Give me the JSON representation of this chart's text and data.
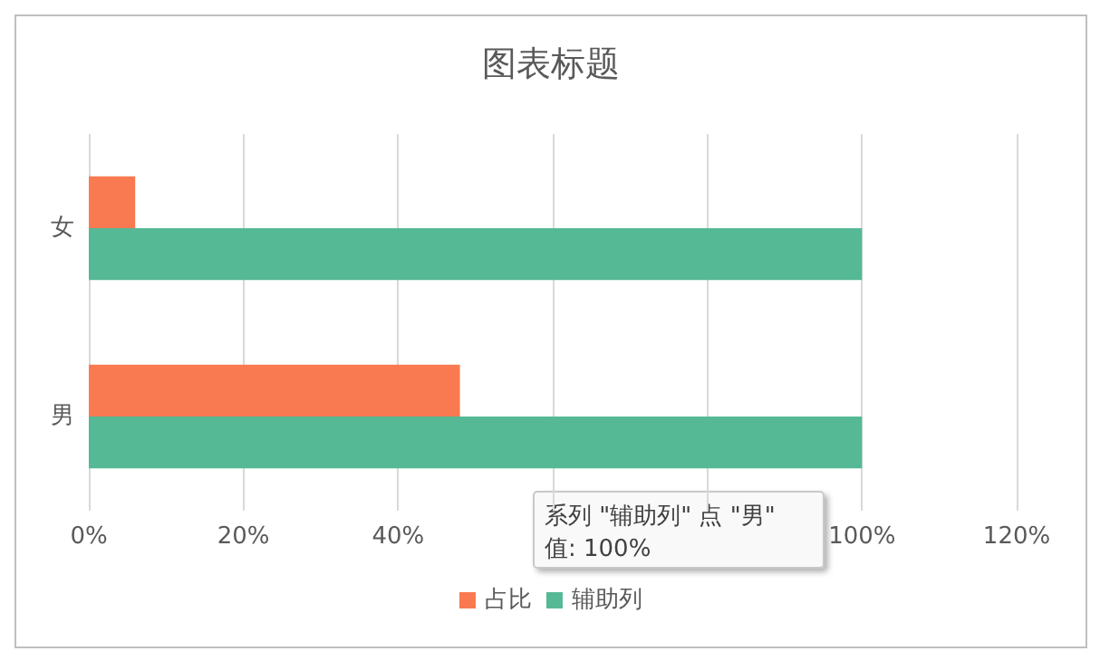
{
  "chart_data": {
    "type": "bar",
    "orientation": "horizontal",
    "title": "图表标题",
    "categories": [
      "女",
      "男"
    ],
    "series": [
      {
        "name": "占比",
        "color": "#f97a50",
        "values": [
          6,
          48
        ]
      },
      {
        "name": "辅助列",
        "color": "#55b995",
        "values": [
          100,
          100
        ]
      }
    ],
    "xlim": [
      0,
      120
    ],
    "xticks": [
      {
        "value": 0,
        "label": "0%"
      },
      {
        "value": 20,
        "label": "20%"
      },
      {
        "value": 40,
        "label": "40%"
      },
      {
        "value": 60,
        "label": null
      },
      {
        "value": 80,
        "label": null
      },
      {
        "value": 100,
        "label": "100%"
      },
      {
        "value": 120,
        "label": "120%"
      }
    ],
    "grid": "x",
    "legend": "bottom",
    "annotations": [
      "系列 \"辅助列\" 点 \"男\"\n值: 100%"
    ]
  }
}
